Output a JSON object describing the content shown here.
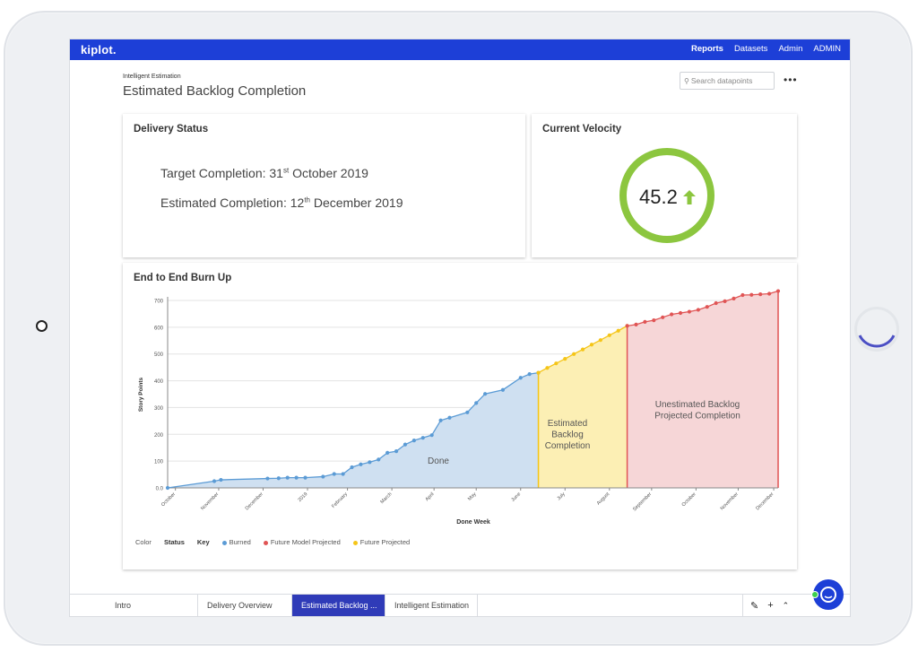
{
  "app": {
    "logo": "kiplot."
  },
  "nav": {
    "items": [
      "Reports",
      "Datasets",
      "Admin",
      "ADMIN"
    ],
    "active": "Reports"
  },
  "breadcrumb": "Intelligent Estimation",
  "page_title": "Estimated Backlog Completion",
  "search": {
    "placeholder": "Search datapoints"
  },
  "delivery": {
    "title": "Delivery Status",
    "target_prefix": "Target Completion: 31",
    "target_sup": "st",
    "target_suffix": " October 2019",
    "estimated_prefix": "Estimated Completion: 12",
    "estimated_sup": "th",
    "estimated_suffix": " December 2019"
  },
  "velocity": {
    "title": "Current Velocity",
    "value": "45.2",
    "trend_icon": "up-arrow-icon",
    "ring_color": "#8cc63f"
  },
  "burnup": {
    "title": "End to End Burn Up"
  },
  "chart_data": {
    "type": "area",
    "ylabel": "Story Points",
    "xlabel": "Done Week",
    "ylim": [
      0,
      700
    ],
    "yticks": [
      "0.0",
      "100",
      "200",
      "300",
      "400",
      "500",
      "600",
      "700"
    ],
    "xticks": [
      "October",
      "November",
      "December",
      "2019",
      "February",
      "March",
      "April",
      "May",
      "June",
      "July",
      "August",
      "September",
      "October",
      "November",
      "December"
    ],
    "regions": [
      {
        "label": "Done",
        "color": "#cfe0f1"
      },
      {
        "label": "Estimated Backlog Completion",
        "color": "#fcefb4"
      },
      {
        "label": "Unestimated Backlog Projected Completion",
        "color": "#f6d6d7"
      }
    ],
    "series": [
      {
        "name": "Burned",
        "color": "#5b9bd5",
        "x": [
          0,
          2.1,
          2.4,
          4.5,
          5.0,
          5.4,
          5.8,
          6.2,
          7.0,
          7.5,
          7.9,
          8.3,
          8.7,
          9.1,
          9.5,
          9.9,
          10.3,
          10.7,
          11.1,
          11.5,
          11.9,
          12.3,
          12.7,
          13.5,
          13.9,
          14.3,
          15.1,
          15.9,
          16.3,
          16.7
        ],
        "y": [
          0,
          25,
          30,
          35,
          36,
          38,
          38,
          38,
          42,
          52,
          52,
          77,
          88,
          96,
          106,
          131,
          137,
          162,
          177,
          187,
          197,
          252,
          262,
          282,
          317,
          351,
          366,
          411,
          425,
          430
        ]
      },
      {
        "name": "Future Projected",
        "color": "#f5c518",
        "x": [
          16.7,
          17.1,
          17.5,
          17.9,
          18.3,
          18.7,
          19.1,
          19.5,
          19.9,
          20.3,
          20.7
        ],
        "y": [
          430,
          448,
          465,
          482,
          500,
          517,
          535,
          552,
          570,
          587,
          605
        ]
      },
      {
        "name": "Future Model Projected",
        "color": "#e05555",
        "x": [
          20.7,
          21.1,
          21.5,
          21.9,
          22.3,
          22.7,
          23.1,
          23.5,
          23.9,
          24.3,
          24.7,
          25.1,
          25.5,
          25.9,
          26.3,
          26.7,
          27.1,
          27.5
        ],
        "y": [
          605,
          610,
          620,
          626,
          637,
          648,
          653,
          658,
          665,
          676,
          690,
          697,
          707,
          720,
          721,
          723,
          725,
          735
        ]
      }
    ],
    "legend": {
      "color_label": "Color",
      "status_label": "Status",
      "key_label": "Key",
      "items": [
        "Burned",
        "Future Model Projected",
        "Future Projected"
      ]
    }
  },
  "tabs": [
    {
      "label": "Intro",
      "active": false
    },
    {
      "label": "Delivery Overview",
      "active": false
    },
    {
      "label": "Estimated Backlog ...",
      "active": true
    },
    {
      "label": "Intelligent Estimation",
      "active": false
    }
  ],
  "tools": {
    "edit_icon": "pencil-icon",
    "add_icon": "plus-icon",
    "collapse_icon": "chevron-up-icon"
  }
}
